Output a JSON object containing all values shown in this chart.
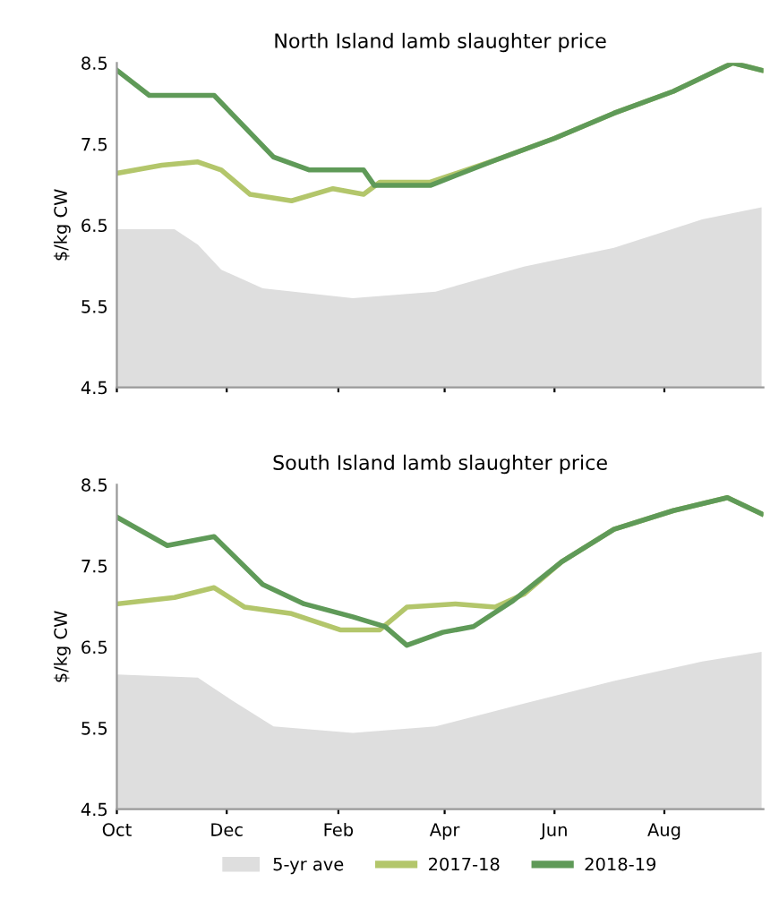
{
  "chart_data": [
    {
      "type": "line",
      "title": "North Island lamb slaughter price",
      "ylabel": "$/kg CW",
      "ylim": [
        4.5,
        8.5
      ],
      "yticks": [
        4.5,
        5.5,
        6.5,
        7.5,
        8.5
      ],
      "xlim": [
        "2018-10-01",
        "2019-09-25"
      ],
      "xticks": [
        {
          "value": "2018-10-01",
          "label": null
        },
        {
          "value": "2018-12-01",
          "label": null
        },
        {
          "value": "2019-02-01",
          "label": null
        },
        {
          "value": "2019-04-01",
          "label": null
        },
        {
          "value": "2019-06-01",
          "label": null
        },
        {
          "value": "2019-08-01",
          "label": null
        }
      ],
      "tick_labels": "y",
      "grid": false,
      "legend": false,
      "series": [
        {
          "type": "area",
          "color": "#dedede",
          "x": [
            "2018-10-01",
            "2018-11-02",
            "2018-11-15",
            "2018-11-28",
            "2018-12-21",
            "2019-02-09",
            "2019-03-27",
            "2019-05-15",
            "2019-07-04",
            "2019-08-22",
            "2019-09-24"
          ],
          "values": [
            6.45,
            6.45,
            6.26,
            5.95,
            5.72,
            5.6,
            5.68,
            5.99,
            6.22,
            6.57,
            6.72
          ]
        },
        {
          "color": "#b3c66b",
          "x": [
            "2018-10-01",
            "2018-10-26",
            "2018-11-15",
            "2018-11-28",
            "2018-12-14",
            "2019-01-06",
            "2019-01-29",
            "2019-02-15",
            "2019-02-24",
            "2019-03-24",
            "2019-04-29",
            "2019-06-01",
            "2019-07-04",
            "2019-08-06",
            "2019-09-08",
            "2019-09-24"
          ],
          "values": [
            7.14,
            7.24,
            7.28,
            7.18,
            6.88,
            6.8,
            6.95,
            6.88,
            7.03,
            7.03,
            7.3,
            7.57,
            7.88,
            8.15,
            8.5,
            8.41
          ]
        },
        {
          "color": "#5f9a58",
          "x": [
            "2018-10-01",
            "2018-10-19",
            "2018-11-24",
            "2018-12-27",
            "2019-01-16",
            "2019-02-15",
            "2019-02-21",
            "2019-03-24",
            "2019-04-29",
            "2019-06-01",
            "2019-07-04",
            "2019-08-06",
            "2019-09-08",
            "2019-09-24"
          ],
          "values": [
            8.41,
            8.1,
            8.1,
            7.34,
            7.18,
            7.18,
            6.99,
            6.99,
            7.3,
            7.57,
            7.88,
            8.15,
            8.5,
            8.41
          ]
        }
      ]
    },
    {
      "type": "line",
      "title": "South Island lamb slaughter price",
      "ylabel": "$/kg CW",
      "ylim": [
        4.5,
        8.5
      ],
      "yticks": [
        4.5,
        5.5,
        6.5,
        7.5,
        8.5
      ],
      "xlim": [
        "2018-10-01",
        "2019-09-25"
      ],
      "xticks": [
        {
          "value": "2018-10-01",
          "label": "Oct"
        },
        {
          "value": "2018-12-01",
          "label": "Dec"
        },
        {
          "value": "2019-02-01",
          "label": "Feb"
        },
        {
          "value": "2019-04-01",
          "label": "Apr"
        },
        {
          "value": "2019-06-01",
          "label": "Jun"
        },
        {
          "value": "2019-08-01",
          "label": "Aug"
        }
      ],
      "grid": false,
      "legend": "bottom",
      "series": [
        {
          "name": "5-yr ave",
          "type": "area",
          "color": "#dedede",
          "x": [
            "2018-10-01",
            "2018-11-15",
            "2018-12-04",
            "2018-12-27",
            "2019-02-09",
            "2019-03-27",
            "2019-05-15",
            "2019-07-04",
            "2019-08-22",
            "2019-09-24"
          ],
          "values": [
            6.16,
            6.12,
            5.84,
            5.52,
            5.44,
            5.52,
            5.8,
            6.08,
            6.32,
            6.44
          ]
        },
        {
          "name": "2017-18",
          "color": "#b3c66b",
          "x": [
            "2018-10-01",
            "2018-11-02",
            "2018-11-24",
            "2018-12-11",
            "2019-01-06",
            "2019-02-02",
            "2019-02-24",
            "2019-03-11",
            "2019-04-07",
            "2019-04-29",
            "2019-05-15",
            "2019-06-05",
            "2019-07-04",
            "2019-08-06",
            "2019-09-05",
            "2019-09-24"
          ],
          "values": [
            7.03,
            7.11,
            7.23,
            6.99,
            6.91,
            6.71,
            6.71,
            6.99,
            7.03,
            6.99,
            7.15,
            7.55,
            7.95,
            8.18,
            8.34,
            8.14
          ]
        },
        {
          "name": "2018-19",
          "color": "#5f9a58",
          "x": [
            "2018-10-01",
            "2018-10-29",
            "2018-11-24",
            "2018-12-21",
            "2019-01-13",
            "2019-02-09",
            "2019-02-27",
            "2019-03-11",
            "2019-03-31",
            "2019-04-17",
            "2019-05-09",
            "2019-06-05",
            "2019-07-04",
            "2019-08-06",
            "2019-09-05",
            "2019-09-24"
          ],
          "values": [
            8.1,
            7.75,
            7.86,
            7.27,
            7.03,
            6.87,
            6.75,
            6.52,
            6.68,
            6.75,
            7.07,
            7.55,
            7.95,
            8.18,
            8.34,
            8.14
          ]
        }
      ]
    }
  ]
}
